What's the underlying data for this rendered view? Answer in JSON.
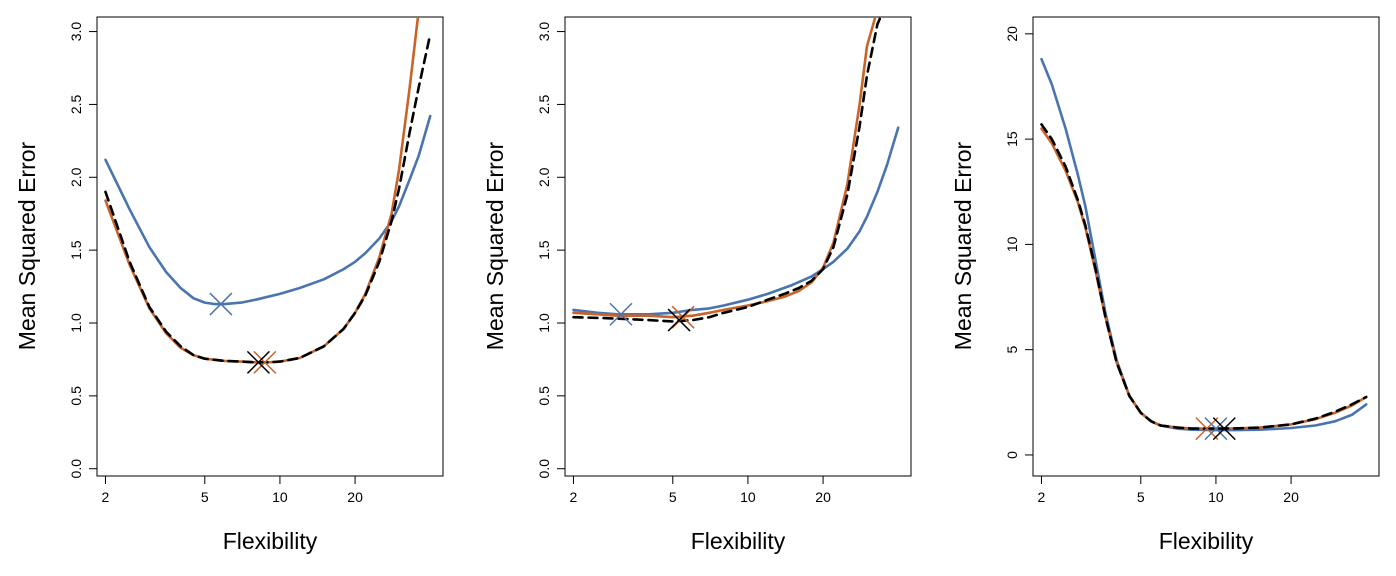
{
  "chart_data": [
    {
      "type": "line",
      "xlabel": "Flexibility",
      "ylabel": "Mean Squared Error",
      "x_scale": "log",
      "xlim": [
        1.85,
        45
      ],
      "ylim": [
        -0.05,
        3.1
      ],
      "x_ticks": [
        2,
        5,
        10,
        20
      ],
      "y_ticks": [
        0.0,
        0.5,
        1.0,
        1.5,
        2.0,
        2.5,
        3.0
      ],
      "y_tick_labels": [
        "0.0",
        "0.5",
        "1.0",
        "1.5",
        "2.0",
        "2.5",
        "3.0"
      ],
      "series": [
        {
          "color": "#4a74b0",
          "style": "solid",
          "x": [
            2,
            2.5,
            3,
            3.5,
            4,
            4.5,
            5,
            5.5,
            6,
            7,
            8,
            10,
            12,
            15,
            18,
            20,
            22,
            25,
            28,
            30,
            33,
            36,
            40
          ],
          "y": [
            2.12,
            1.78,
            1.52,
            1.35,
            1.24,
            1.17,
            1.14,
            1.13,
            1.13,
            1.14,
            1.16,
            1.2,
            1.24,
            1.3,
            1.37,
            1.42,
            1.48,
            1.58,
            1.7,
            1.8,
            1.98,
            2.15,
            2.42
          ],
          "marker": {
            "x": 5.8,
            "y": 1.13
          }
        },
        {
          "color": "#c8642a",
          "style": "solid",
          "x": [
            2,
            2.5,
            3,
            3.5,
            4,
            4.5,
            5,
            6,
            7,
            8,
            9,
            10,
            12,
            15,
            18,
            20,
            22,
            25,
            28,
            30,
            33,
            36
          ],
          "y": [
            1.84,
            1.4,
            1.1,
            0.93,
            0.83,
            0.78,
            0.755,
            0.74,
            0.735,
            0.73,
            0.73,
            0.735,
            0.76,
            0.84,
            0.96,
            1.07,
            1.2,
            1.45,
            1.75,
            2.05,
            2.6,
            3.15
          ],
          "marker": {
            "x": 8.7,
            "y": 0.73
          }
        },
        {
          "color": "#000000",
          "style": "dashed",
          "x": [
            2,
            2.5,
            3,
            3.5,
            4,
            4.5,
            5,
            6,
            7,
            8,
            9,
            10,
            12,
            15,
            18,
            20,
            22,
            25,
            28,
            30,
            33,
            36,
            40
          ],
          "y": [
            1.9,
            1.42,
            1.11,
            0.94,
            0.84,
            0.78,
            0.755,
            0.74,
            0.735,
            0.73,
            0.73,
            0.735,
            0.76,
            0.84,
            0.96,
            1.07,
            1.19,
            1.42,
            1.7,
            1.92,
            2.3,
            2.62,
            2.98
          ],
          "marker": {
            "x": 8.2,
            "y": 0.73
          }
        }
      ]
    },
    {
      "type": "line",
      "xlabel": "Flexibility",
      "ylabel": "Mean Squared Error",
      "x_scale": "log",
      "xlim": [
        1.85,
        45
      ],
      "ylim": [
        -0.05,
        3.1
      ],
      "x_ticks": [
        2,
        5,
        10,
        20
      ],
      "y_ticks": [
        0.0,
        0.5,
        1.0,
        1.5,
        2.0,
        2.5,
        3.0
      ],
      "y_tick_labels": [
        "0.0",
        "0.5",
        "1.0",
        "1.5",
        "2.0",
        "2.5",
        "3.0"
      ],
      "series": [
        {
          "color": "#4a74b0",
          "style": "solid",
          "x": [
            2,
            2.5,
            3,
            3.5,
            4,
            5,
            6,
            7,
            8,
            10,
            12,
            15,
            18,
            20,
            22,
            25,
            28,
            30,
            33,
            36,
            40
          ],
          "y": [
            1.09,
            1.07,
            1.06,
            1.06,
            1.06,
            1.07,
            1.09,
            1.1,
            1.12,
            1.16,
            1.2,
            1.26,
            1.32,
            1.37,
            1.42,
            1.51,
            1.63,
            1.73,
            1.9,
            2.08,
            2.34
          ],
          "marker": {
            "x": 3.1,
            "y": 1.06
          }
        },
        {
          "color": "#c8642a",
          "style": "solid",
          "x": [
            2,
            2.5,
            3,
            3.5,
            4,
            5,
            6,
            7,
            8,
            10,
            12,
            14,
            16,
            18,
            20,
            22,
            25,
            28,
            30,
            33
          ],
          "y": [
            1.07,
            1.06,
            1.05,
            1.05,
            1.05,
            1.04,
            1.05,
            1.07,
            1.09,
            1.12,
            1.15,
            1.18,
            1.22,
            1.28,
            1.38,
            1.55,
            1.95,
            2.5,
            2.9,
            3.15
          ],
          "marker": {
            "x": 5.5,
            "y": 1.04
          }
        },
        {
          "color": "#000000",
          "style": "dashed",
          "x": [
            2,
            2.5,
            3,
            3.5,
            4,
            5,
            6,
            7,
            8,
            10,
            12,
            14,
            16,
            18,
            20,
            22,
            25,
            28,
            30,
            33,
            35
          ],
          "y": [
            1.04,
            1.035,
            1.03,
            1.025,
            1.02,
            1.01,
            1.02,
            1.04,
            1.07,
            1.11,
            1.16,
            1.2,
            1.24,
            1.29,
            1.37,
            1.52,
            1.88,
            2.35,
            2.7,
            3.05,
            3.15
          ],
          "marker": {
            "x": 5.3,
            "y": 1.02
          }
        }
      ]
    },
    {
      "type": "line",
      "xlabel": "Flexibility",
      "ylabel": "Mean Squared Error",
      "x_scale": "log",
      "xlim": [
        1.85,
        45
      ],
      "ylim": [
        -1,
        20.8
      ],
      "x_ticks": [
        2,
        5,
        10,
        20
      ],
      "y_ticks": [
        0,
        5,
        10,
        15,
        20
      ],
      "y_tick_labels": [
        "0",
        "5",
        "10",
        "15",
        "20"
      ],
      "series": [
        {
          "color": "#4a74b0",
          "style": "solid",
          "x": [
            2,
            2.2,
            2.5,
            2.8,
            3,
            3.3,
            3.6,
            4,
            4.5,
            5,
            5.5,
            6,
            7,
            8,
            10,
            12,
            15,
            20,
            25,
            30,
            35,
            40
          ],
          "y": [
            18.8,
            17.6,
            15.5,
            13.3,
            11.8,
            9.2,
            6.8,
            4.5,
            2.8,
            2.0,
            1.6,
            1.4,
            1.25,
            1.2,
            1.18,
            1.18,
            1.2,
            1.28,
            1.4,
            1.6,
            1.9,
            2.4
          ],
          "marker": {
            "x": 10.0,
            "y": 1.25
          }
        },
        {
          "color": "#c8642a",
          "style": "solid",
          "x": [
            2,
            2.2,
            2.5,
            2.8,
            3,
            3.3,
            3.6,
            4,
            4.5,
            5,
            5.5,
            6,
            7,
            8,
            10,
            12,
            15,
            20,
            25,
            30,
            35,
            40
          ],
          "y": [
            15.5,
            14.8,
            13.5,
            12.0,
            10.8,
            8.7,
            6.6,
            4.4,
            2.8,
            2.0,
            1.6,
            1.4,
            1.3,
            1.25,
            1.25,
            1.26,
            1.3,
            1.45,
            1.7,
            2.0,
            2.35,
            2.75
          ],
          "marker": {
            "x": 9.2,
            "y": 1.25
          }
        },
        {
          "color": "#000000",
          "style": "dashed",
          "x": [
            2,
            2.2,
            2.5,
            2.8,
            3,
            3.3,
            3.6,
            4,
            4.5,
            5,
            5.5,
            6,
            7,
            8,
            10,
            12,
            15,
            20,
            25,
            30,
            35,
            40
          ],
          "y": [
            15.7,
            15.0,
            13.7,
            12.1,
            10.9,
            8.8,
            6.6,
            4.4,
            2.8,
            2.0,
            1.6,
            1.4,
            1.3,
            1.25,
            1.25,
            1.26,
            1.3,
            1.45,
            1.72,
            2.05,
            2.4,
            2.75
          ],
          "marker": {
            "x": 10.8,
            "y": 1.25
          }
        }
      ]
    }
  ]
}
